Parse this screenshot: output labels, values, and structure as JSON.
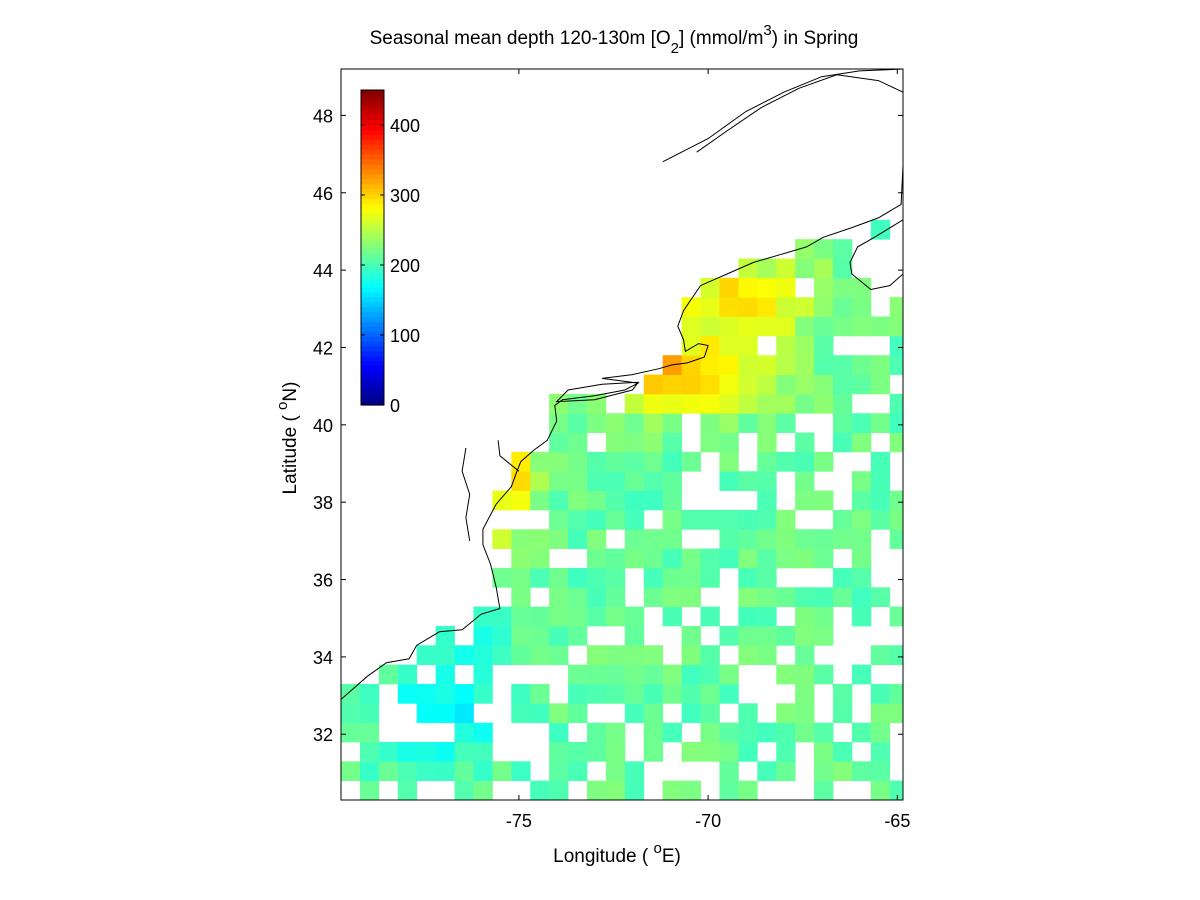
{
  "chart_data": {
    "type": "heatmap",
    "title_parts": [
      "Seasonal mean depth 120-130m [O",
      "2",
      "] (mmol/m",
      "3",
      ") in  Spring"
    ],
    "xlabel_parts": [
      "Longitude ( ",
      "o",
      "E)"
    ],
    "ylabel_parts": [
      "Latitude ( ",
      "o",
      "N)"
    ],
    "xlim": [
      -79.7,
      -64.85
    ],
    "ylim": [
      30.3,
      49.2
    ],
    "xticks": [
      -75,
      -70,
      -65
    ],
    "yticks": [
      32,
      34,
      36,
      38,
      40,
      42,
      44,
      46,
      48
    ],
    "grid": false,
    "colormap": "jet",
    "colorbar": {
      "placement": "upper-left inside axes",
      "min": 0,
      "max": 450,
      "ticks": [
        0,
        100,
        200,
        300,
        400
      ]
    },
    "cell_size_deg": 0.5,
    "value_range_observed": [
      150,
      440
    ],
    "missing_value": "blank (no data)",
    "coastline_color": "#000000"
  }
}
